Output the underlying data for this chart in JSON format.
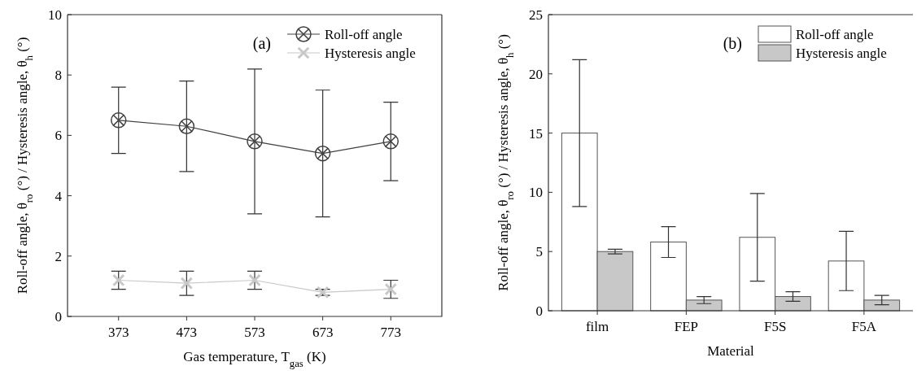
{
  "chart_data": [
    {
      "type": "line",
      "categories": [
        "373",
        "473",
        "573",
        "673",
        "773"
      ],
      "xlabel": "Gas temperature, T$_{gas}$ (K)",
      "ylabel": "Roll-off angle, θ$_{ro}$ (°) / Hysteresis angle, θ$_{h}$ (°)",
      "ylim": [
        0,
        10
      ],
      "yticks": [
        0,
        2,
        4,
        6,
        8,
        10
      ],
      "legend": "top right",
      "annotations": [
        "(a)"
      ],
      "series": [
        {
          "name": "Roll-off angle",
          "color": "#404040",
          "marker": "circle",
          "values": [
            6.5,
            6.3,
            5.8,
            5.4,
            5.8
          ],
          "errors": [
            [
              5.4,
              7.6
            ],
            [
              4.8,
              7.8
            ],
            [
              3.4,
              8.2
            ],
            [
              3.3,
              7.5
            ],
            [
              4.5,
              7.1
            ]
          ]
        },
        {
          "name": "Hysteresis angle",
          "color": "#c8c8c8",
          "marker": "cross",
          "values": [
            1.2,
            1.1,
            1.2,
            0.8,
            0.9
          ],
          "errors": [
            [
              0.9,
              1.5
            ],
            [
              0.7,
              1.5
            ],
            [
              0.9,
              1.5
            ],
            [
              0.7,
              0.9
            ],
            [
              0.6,
              1.2
            ]
          ]
        }
      ]
    },
    {
      "type": "bar",
      "categories": [
        "film",
        "FEP",
        "F5S",
        "F5A"
      ],
      "xlabel": "Material",
      "ylabel": "Roll-off angle, θ$_{ro}$ (°) / Hysteresis angle, θ$_{h}$ (°)",
      "ylim": [
        0,
        25
      ],
      "yticks": [
        0,
        5,
        10,
        15,
        20,
        25
      ],
      "legend": "top right",
      "annotations": [
        "(b)"
      ],
      "series": [
        {
          "name": "Roll-off angle",
          "color": "#ffffff",
          "values": [
            15,
            5.8,
            6.2,
            4.2
          ],
          "errors": [
            [
              8.8,
              21.2
            ],
            [
              4.5,
              7.1
            ],
            [
              2.5,
              9.9
            ],
            [
              1.7,
              6.7
            ]
          ]
        },
        {
          "name": "Hysteresis angle",
          "color": "#c8c8c8",
          "values": [
            5.0,
            0.9,
            1.2,
            0.9
          ],
          "errors": [
            [
              4.8,
              5.2
            ],
            [
              0.6,
              1.2
            ],
            [
              0.8,
              1.6
            ],
            [
              0.5,
              1.3
            ]
          ]
        }
      ]
    }
  ]
}
